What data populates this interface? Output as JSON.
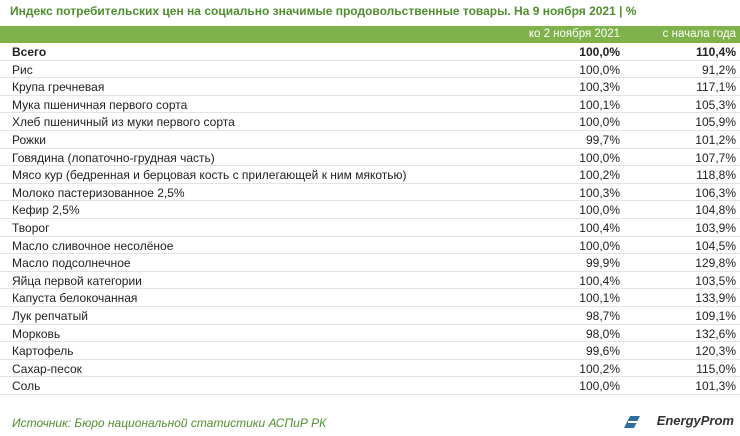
{
  "header": {
    "title": "Индекс потребительских цен на социально значимые продовольственные товары. На 9 ноября 2021 | %"
  },
  "table": {
    "columns": [
      "ко 2 ноября 2021",
      "с начала года"
    ],
    "rows": [
      [
        "Всего",
        "100,0%",
        "110,4%"
      ],
      [
        "Рис",
        "100,0%",
        "91,2%"
      ],
      [
        "Крупа гречневая",
        "100,3%",
        "117,1%"
      ],
      [
        "Мука пшеничная первого сорта",
        "100,1%",
        "105,3%"
      ],
      [
        "Хлеб пшеничный из муки первого сорта",
        "100,0%",
        "105,9%"
      ],
      [
        "Рожки",
        "99,7%",
        "101,2%"
      ],
      [
        "Говядина (лопаточно-грудная часть)",
        "100,0%",
        "107,7%"
      ],
      [
        "Мясо кур (бедренная и берцовая кость с прилегающей к ним мякотью)",
        "100,2%",
        "118,8%"
      ],
      [
        "Молоко пастеризованное 2,5%",
        "100,3%",
        "106,3%"
      ],
      [
        "Кефир 2,5%",
        "100,0%",
        "104,8%"
      ],
      [
        "Творог",
        "100,4%",
        "103,9%"
      ],
      [
        "Масло сливочное несолёное",
        "100,0%",
        "104,5%"
      ],
      [
        "Масло подсолнечное",
        "99,9%",
        "129,8%"
      ],
      [
        "Яйца первой категории",
        "100,4%",
        "103,5%"
      ],
      [
        "Капуста белокочанная",
        "100,1%",
        "133,9%"
      ],
      [
        "Лук репчатый",
        "98,7%",
        "109,1%"
      ],
      [
        "Морковь",
        "98,0%",
        "132,6%"
      ],
      [
        "Картофель",
        "99,6%",
        "120,3%"
      ],
      [
        "Сахар-песок",
        "100,2%",
        "115,0%"
      ],
      [
        "Соль",
        "100,0%",
        "101,3%"
      ]
    ]
  },
  "footer": {
    "source": "Источник: Бюро национальной статистики АСПиР РК",
    "logo": "EnergyProm"
  }
}
